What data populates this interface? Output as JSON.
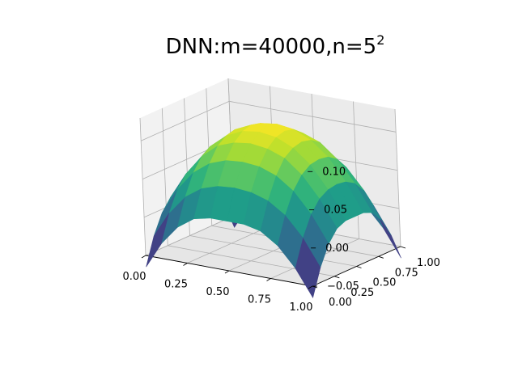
{
  "chart_data": {
    "type": "surface3d",
    "title_prefix": "DNN:m=40000,n=5",
    "title_superscript": "2",
    "colormap": "viridis",
    "grid": true,
    "x_range": [
      0,
      1
    ],
    "y_range": [
      0,
      1
    ],
    "z_range": [
      -0.05,
      0.13
    ],
    "x_ticks": [
      0.0,
      0.25,
      0.5,
      0.75,
      1.0
    ],
    "x_tick_labels": [
      "0.00",
      "0.25",
      "0.50",
      "0.75",
      "1.00"
    ],
    "y_ticks": [
      0.0,
      0.25,
      0.5,
      0.75,
      1.0
    ],
    "y_tick_labels": [
      "0.00",
      "0.25",
      "0.50",
      "0.75",
      "1.00"
    ],
    "z_ticks": [
      -0.05,
      0.0,
      0.05,
      0.1
    ],
    "z_tick_labels": [
      "−0.05",
      "0.00",
      "0.05",
      "0.10"
    ],
    "surface": {
      "x": [
        0.0,
        0.1,
        0.2,
        0.3,
        0.4,
        0.5,
        0.6,
        0.7,
        0.8,
        0.9,
        1.0
      ],
      "y": [
        0.0,
        0.1,
        0.2,
        0.3,
        0.4,
        0.5,
        0.6,
        0.7,
        0.8,
        0.9,
        1.0
      ],
      "z": [
        [
          -0.065,
          -0.03,
          -0.005,
          0.01,
          0.015,
          0.015,
          0.015,
          0.01,
          -0.005,
          -0.03,
          -0.065
        ],
        [
          -0.03,
          0.005,
          0.03,
          0.045,
          0.052,
          0.054,
          0.052,
          0.045,
          0.03,
          0.005,
          -0.03
        ],
        [
          -0.005,
          0.03,
          0.056,
          0.072,
          0.08,
          0.082,
          0.08,
          0.072,
          0.056,
          0.03,
          -0.005
        ],
        [
          0.01,
          0.045,
          0.072,
          0.09,
          0.098,
          0.101,
          0.098,
          0.09,
          0.072,
          0.045,
          0.01
        ],
        [
          0.015,
          0.052,
          0.08,
          0.098,
          0.108,
          0.111,
          0.108,
          0.098,
          0.08,
          0.052,
          0.015
        ],
        [
          0.015,
          0.054,
          0.082,
          0.101,
          0.111,
          0.115,
          0.111,
          0.101,
          0.082,
          0.054,
          0.015
        ],
        [
          0.015,
          0.052,
          0.08,
          0.098,
          0.108,
          0.111,
          0.108,
          0.098,
          0.08,
          0.052,
          0.015
        ],
        [
          0.01,
          0.045,
          0.072,
          0.09,
          0.098,
          0.101,
          0.098,
          0.09,
          0.072,
          0.045,
          0.01
        ],
        [
          -0.005,
          0.03,
          0.056,
          0.072,
          0.08,
          0.082,
          0.08,
          0.072,
          0.056,
          0.03,
          -0.005
        ],
        [
          -0.03,
          0.005,
          0.03,
          0.045,
          0.052,
          0.054,
          0.052,
          0.045,
          0.03,
          0.005,
          -0.03
        ],
        [
          -0.065,
          -0.03,
          -0.005,
          0.01,
          0.015,
          0.015,
          0.015,
          0.01,
          -0.005,
          -0.03,
          -0.065
        ]
      ]
    }
  }
}
